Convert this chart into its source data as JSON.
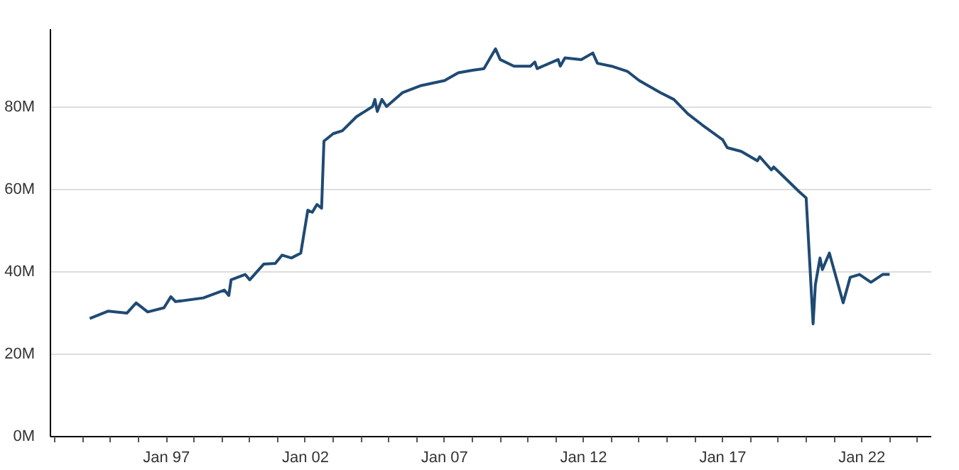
{
  "chart_data": {
    "type": "line",
    "x": [
      "1994-04",
      "1994-12",
      "1995-08",
      "1995-12",
      "1996-05",
      "1996-12",
      "1997-03",
      "1997-05",
      "1998-05",
      "1999-02",
      "1999-04",
      "1999-05",
      "1999-11",
      "2000-01",
      "2000-07",
      "2000-12",
      "2001-03",
      "2001-07",
      "2001-11",
      "2002-02",
      "2002-04",
      "2002-06",
      "2002-08",
      "2002-09",
      "2003-01",
      "2003-05",
      "2003-11",
      "2004-06",
      "2004-07",
      "2004-08",
      "2004-10",
      "2004-12",
      "2005-07",
      "2006-03",
      "2007-01",
      "2007-07",
      "2008-01",
      "2008-06",
      "2008-11",
      "2009-01",
      "2009-07",
      "2010-02",
      "2010-04",
      "2010-05",
      "2011-02",
      "2011-03",
      "2011-05",
      "2011-12",
      "2012-05",
      "2012-07",
      "2013-01",
      "2013-08",
      "2014-01",
      "2014-10",
      "2015-04",
      "2015-10",
      "2016-04",
      "2017-01",
      "2017-03",
      "2017-09",
      "2018-04",
      "2018-05",
      "2018-10",
      "2018-11",
      "2019-06",
      "2019-10",
      "2020-01",
      "2020-04",
      "2020-05",
      "2020-07",
      "2020-08",
      "2020-11",
      "2021-05",
      "2021-08",
      "2021-12",
      "2022-05",
      "2022-10",
      "2023-01"
    ],
    "series": [
      {
        "color": "#1f4a74",
        "values": [
          28.7,
          30.5,
          30,
          32.5,
          30.3,
          31.3,
          34,
          32.8,
          33.7,
          35.6,
          34.3,
          38.1,
          39.4,
          38.1,
          41.9,
          42.1,
          44.1,
          43.4,
          44.6,
          55,
          54.5,
          56.4,
          55.5,
          71.8,
          73.6,
          74.3,
          77.7,
          80.2,
          81.9,
          79,
          81.9,
          80.2,
          83.6,
          85.3,
          86.5,
          88.4,
          89,
          89.4,
          94.2,
          91.6,
          90,
          90,
          91,
          89.4,
          91.6,
          90,
          92,
          91.6,
          93.2,
          90.7,
          90,
          88.7,
          86.5,
          83.6,
          81.9,
          78.4,
          75.8,
          72.1,
          70.2,
          69.3,
          67,
          68,
          64.8,
          65.5,
          61.7,
          59.5,
          58,
          27.4,
          36.9,
          43.4,
          40.6,
          44.6,
          32.5,
          38.7,
          39.4,
          37.5,
          39.4,
          39.4
        ]
      }
    ],
    "xlim": [
      "1992-11",
      "2024-07"
    ],
    "xticks": [
      {
        "value": "1993-01",
        "label": null
      },
      {
        "value": "1994-01",
        "label": null
      },
      {
        "value": "1995-01",
        "label": null
      },
      {
        "value": "1996-01",
        "label": null
      },
      {
        "value": "1997-01",
        "label": "Jan 97"
      },
      {
        "value": "1998-01",
        "label": null
      },
      {
        "value": "1999-01",
        "label": null
      },
      {
        "value": "2000-01",
        "label": null
      },
      {
        "value": "2001-01",
        "label": null
      },
      {
        "value": "2002-01",
        "label": "Jan 02"
      },
      {
        "value": "2003-01",
        "label": null
      },
      {
        "value": "2004-01",
        "label": null
      },
      {
        "value": "2005-01",
        "label": null
      },
      {
        "value": "2006-01",
        "label": null
      },
      {
        "value": "2007-01",
        "label": "Jan 07"
      },
      {
        "value": "2008-01",
        "label": null
      },
      {
        "value": "2009-01",
        "label": null
      },
      {
        "value": "2010-01",
        "label": null
      },
      {
        "value": "2011-01",
        "label": null
      },
      {
        "value": "2012-01",
        "label": "Jan 12"
      },
      {
        "value": "2013-01",
        "label": null
      },
      {
        "value": "2014-01",
        "label": null
      },
      {
        "value": "2015-01",
        "label": null
      },
      {
        "value": "2016-01",
        "label": null
      },
      {
        "value": "2017-01",
        "label": "Jan 17"
      },
      {
        "value": "2018-01",
        "label": null
      },
      {
        "value": "2019-01",
        "label": null
      },
      {
        "value": "2020-01",
        "label": null
      },
      {
        "value": "2021-01",
        "label": null
      },
      {
        "value": "2022-01",
        "label": "Jan 22"
      },
      {
        "value": "2023-01",
        "label": null
      },
      {
        "value": "2024-01",
        "label": null
      }
    ],
    "ylim": [
      0,
      99
    ],
    "yticks": [
      {
        "value": 0,
        "label": "0M"
      },
      {
        "value": 20,
        "label": "20M"
      },
      {
        "value": 40,
        "label": "40M"
      },
      {
        "value": 60,
        "label": "60M"
      },
      {
        "value": 80,
        "label": "80M"
      }
    ],
    "grid": "y",
    "marker": "none",
    "line_style": "solid"
  }
}
